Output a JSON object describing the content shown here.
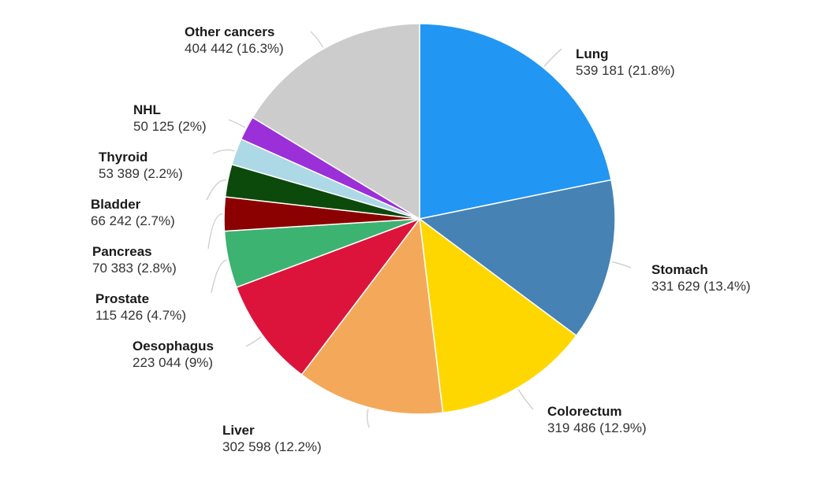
{
  "chart_data": {
    "type": "pie",
    "title": "",
    "start_angle_deg": 0,
    "direction": "clockwise",
    "legend": "none",
    "slices": [
      {
        "name": "Lung",
        "value": 539181,
        "value_label": "539 181 (21.8%)",
        "percent": 21.8,
        "color": "#2196F3"
      },
      {
        "name": "Stomach",
        "value": 331629,
        "value_label": "331 629 (13.4%)",
        "percent": 13.4,
        "color": "#4682B4"
      },
      {
        "name": "Colorectum",
        "value": 319486,
        "value_label": "319 486 (12.9%)",
        "percent": 12.9,
        "color": "#FFD700"
      },
      {
        "name": "Liver",
        "value": 302598,
        "value_label": "302 598 (12.2%)",
        "percent": 12.2,
        "color": "#F4A95A"
      },
      {
        "name": "Oesophagus",
        "value": 223044,
        "value_label": "223 044 (9%)",
        "percent": 9.0,
        "color": "#DC143C"
      },
      {
        "name": "Prostate",
        "value": 115426,
        "value_label": "115 426 (4.7%)",
        "percent": 4.7,
        "color": "#3CB371"
      },
      {
        "name": "Pancreas",
        "value": 70383,
        "value_label": "70 383 (2.8%)",
        "percent": 2.8,
        "color": "#8B0000"
      },
      {
        "name": "Bladder",
        "value": 66242,
        "value_label": "66 242 (2.7%)",
        "percent": 2.7,
        "color": "#0B4A0B"
      },
      {
        "name": "Thyroid",
        "value": 53389,
        "value_label": "53 389 (2.2%)",
        "percent": 2.2,
        "color": "#ADD8E6"
      },
      {
        "name": "NHL",
        "value": 50125,
        "value_label": "50 125 (2%)",
        "percent": 2.0,
        "color": "#9B30D9"
      },
      {
        "name": "Other cancers",
        "value": 404442,
        "value_label": "404 442 (16.3%)",
        "percent": 16.3,
        "color": "#CCCCCC"
      }
    ]
  }
}
